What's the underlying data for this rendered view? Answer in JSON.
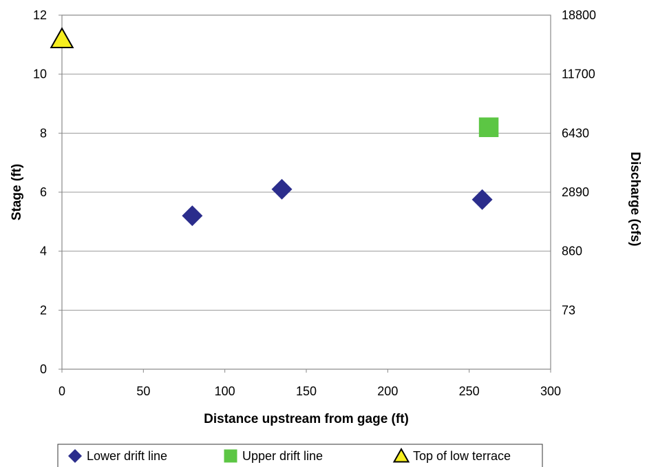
{
  "chart_data": {
    "type": "scatter",
    "xlabel": "Distance upstream from gage (ft)",
    "ylabel": "Stage (ft)",
    "y2label": "Discharge (cfs)",
    "xlim": [
      0,
      300
    ],
    "ylim": [
      0,
      12
    ],
    "xticks": [
      0,
      50,
      100,
      150,
      200,
      250,
      300
    ],
    "yticks": [
      0,
      2,
      4,
      6,
      8,
      10,
      12
    ],
    "y2ticks": [
      {
        "stage": 2,
        "label": "73"
      },
      {
        "stage": 4,
        "label": "860"
      },
      {
        "stage": 6,
        "label": "2890"
      },
      {
        "stage": 8,
        "label": "6430"
      },
      {
        "stage": 10,
        "label": "11700"
      },
      {
        "stage": 12,
        "label": "18800"
      }
    ],
    "grid": "horizontal",
    "legend_position": "bottom",
    "series": [
      {
        "name": "Lower drift line",
        "marker": "diamond",
        "color": "#2b2d8c",
        "points": [
          {
            "x": 80,
            "y": 5.2
          },
          {
            "x": 135,
            "y": 6.1
          },
          {
            "x": 258,
            "y": 5.75
          }
        ]
      },
      {
        "name": "Upper drift line",
        "marker": "square",
        "color": "#5cc644",
        "points": [
          {
            "x": 262,
            "y": 8.2
          }
        ]
      },
      {
        "name": "Top of low terrace",
        "marker": "triangle",
        "color": "#f6ee1f",
        "points": [
          {
            "x": 0,
            "y": 11.2
          }
        ]
      }
    ]
  }
}
